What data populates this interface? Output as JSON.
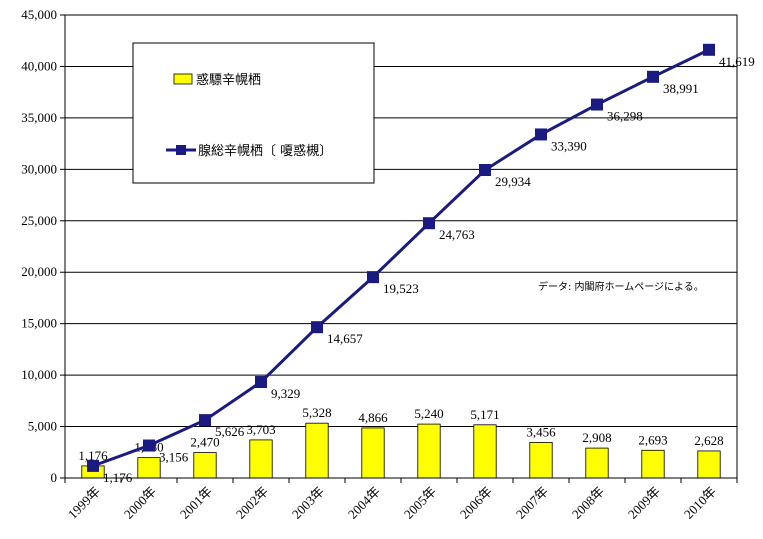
{
  "chart_data": {
    "type": "bar+line",
    "categories": [
      "1999年",
      "2000年",
      "2001年",
      "2002年",
      "2003年",
      "2004年",
      "2005年",
      "2006年",
      "2007年",
      "2008年",
      "2009年",
      "2010年"
    ],
    "series": [
      {
        "name": "惑驃辛幌栖",
        "type": "bar",
        "color": "#ffff00",
        "values": [
          1176,
          1980,
          2470,
          3703,
          5328,
          4866,
          5240,
          5171,
          3456,
          2908,
          2693,
          2628
        ],
        "labels": [
          "1,176",
          "1,980",
          "2,470",
          "3,703",
          "5,328",
          "4,866",
          "5,240",
          "5,171",
          "3,456",
          "2,908",
          "2,693",
          "2,628"
        ]
      },
      {
        "name": "腺総辛幌栖〔 嗄惑槻〕",
        "type": "line",
        "color": "#1a1a80",
        "values": [
          1176,
          3156,
          5626,
          9329,
          14657,
          19523,
          24763,
          29934,
          33390,
          36298,
          38991,
          41619
        ],
        "labels": [
          "1,176",
          "3,156",
          "5,626",
          "9,329",
          "14,657",
          "19,523",
          "24,763",
          "29,934",
          "33,390",
          "36,298",
          "38,991",
          "41,619"
        ]
      }
    ],
    "ylim": [
      0,
      45000
    ],
    "yticks": [
      "0",
      "5,000",
      "10,000",
      "15,000",
      "20,000",
      "25,000",
      "30,000",
      "35,000",
      "40,000",
      "45,000"
    ],
    "grid": true,
    "legend_position": "top-left",
    "annotation": "データ: 内閣府ホームページによる。"
  }
}
